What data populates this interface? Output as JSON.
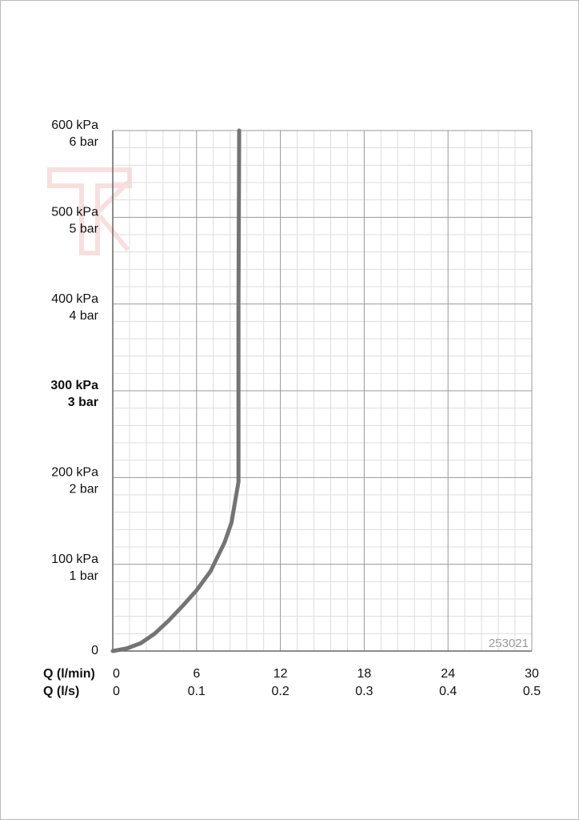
{
  "chart_data": {
    "type": "line",
    "x_axis_labels": [
      "Q (l/min)",
      "Q (l/s)"
    ],
    "x": [
      0,
      1,
      2,
      3,
      4,
      5,
      6,
      7,
      8,
      8.5,
      9,
      9,
      9.05
    ],
    "series": [
      {
        "color": "#747474",
        "values": [
          0,
          3,
          9,
          20,
          35,
          52,
          70,
          92,
          125,
          148,
          195,
          400,
          600
        ]
      }
    ],
    "xlim": [
      0,
      30
    ],
    "xticks": [
      0,
      6,
      12,
      18,
      24,
      30
    ],
    "x2ticks": [
      0,
      {
        "value": 6,
        "label": "0.1"
      },
      {
        "value": 12,
        "label": "0.2"
      },
      {
        "value": 18,
        "label": "0.3"
      },
      {
        "value": 24,
        "label": "0.4"
      },
      {
        "value": 30,
        "label": "0.5"
      }
    ],
    "ylim": [
      0,
      600
    ],
    "yticks": [
      0,
      {
        "value": 100,
        "label": "100 kPa"
      },
      {
        "value": 200,
        "label": "200 kPa"
      },
      {
        "value": 300,
        "label": "300 kPa"
      },
      {
        "value": 400,
        "label": "400 kPa"
      },
      {
        "value": 500,
        "label": "500 kPa"
      },
      {
        "value": 600,
        "label": "600 kPa"
      }
    ],
    "y2ticks": [
      {
        "value": 100,
        "label": "1 bar"
      },
      {
        "value": 200,
        "label": "2 bar"
      },
      {
        "value": 300,
        "label": "3 bar"
      },
      {
        "value": 400,
        "label": "4 bar"
      },
      {
        "value": 500,
        "label": "5 bar"
      },
      {
        "value": 600,
        "label": "6 bar"
      }
    ],
    "bold_tick": 300,
    "grid": true,
    "minor_divisions": 5,
    "annotation": "253021"
  }
}
